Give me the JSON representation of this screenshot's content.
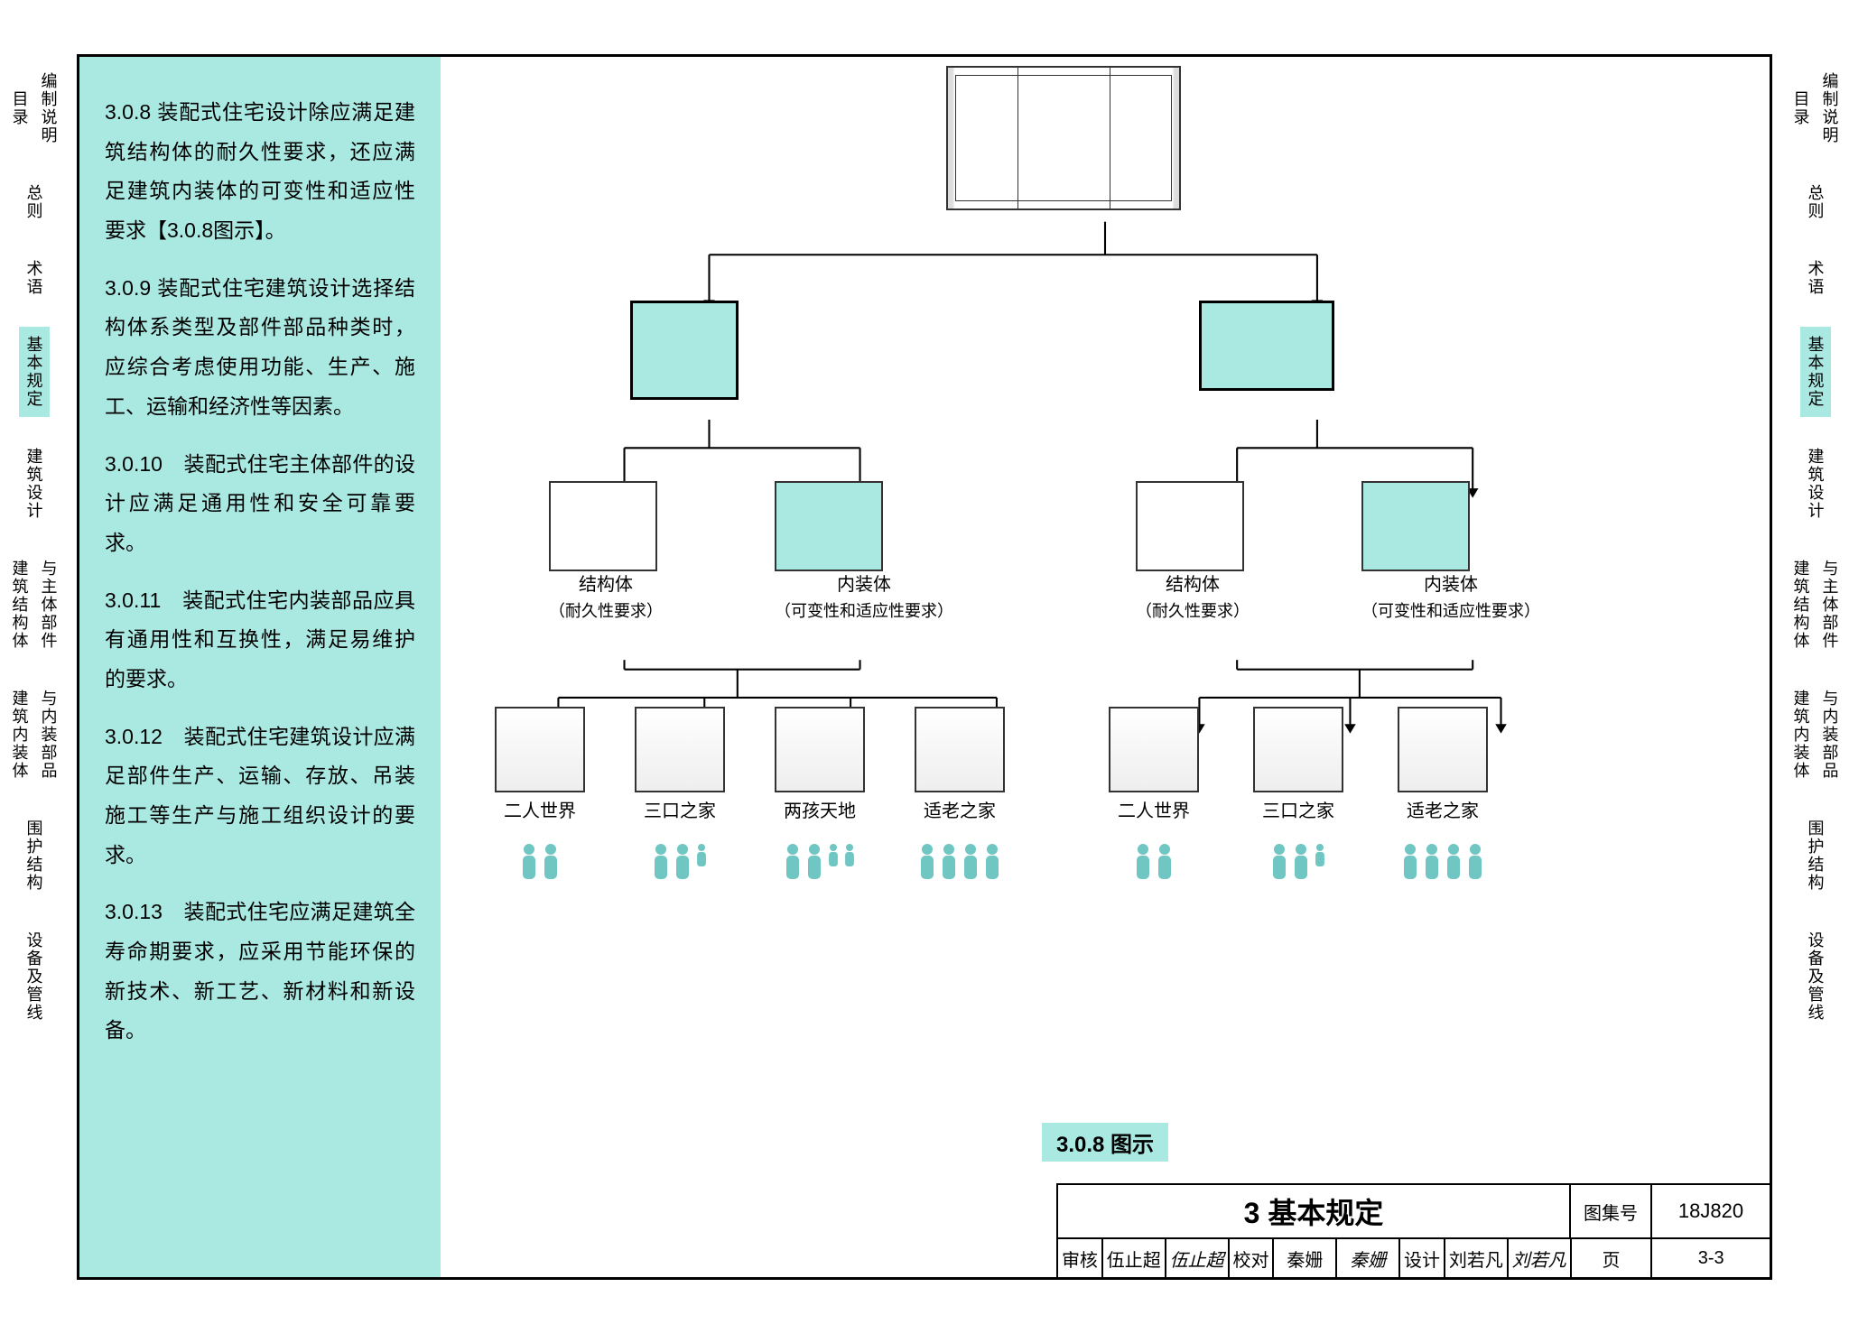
{
  "colors": {
    "accent": "#aae8e2",
    "border": "#000000",
    "text": "#000000",
    "icon": "#6fc6c2"
  },
  "nav": {
    "items": [
      {
        "label": "目录",
        "group": [
          "编制说明"
        ],
        "highlight": false
      },
      {
        "label": "总则",
        "highlight": false
      },
      {
        "label": "术语",
        "highlight": false
      },
      {
        "label": "基本规定",
        "highlight": true
      },
      {
        "label": "建筑设计",
        "highlight": false
      },
      {
        "label": "建筑结构体",
        "group": [
          "与主体部件"
        ],
        "highlight": false
      },
      {
        "label": "建筑内装体",
        "group": [
          "与内装部品"
        ],
        "highlight": false
      },
      {
        "label": "围护结构",
        "highlight": false
      },
      {
        "label": "设备及管线",
        "highlight": false
      }
    ]
  },
  "paragraphs": [
    "3.0.8 装配式住宅设计除应满足建筑结构体的耐久性要求，还应满足建筑内装体的可变性和适应性要求【3.0.8图示】。",
    "3.0.9 装配式住宅建筑设计选择结构体系类型及部件部品种类时，应综合考虑使用功能、生产、施工、运输和经济性等因素。",
    "3.0.10　装配式住宅主体部件的设计应满足通用性和安全可靠要求。",
    "3.0.11　装配式住宅内装部品应具有通用性和互换性，满足易维护的要求。",
    "3.0.12　装配式住宅建筑设计应满足部件生产、运输、存放、吊装施工等生产与施工组织设计的要求。",
    "3.0.13　装配式住宅应满足建筑全寿命期要求，应采用节能环保的新技术、新工艺、新材料和新设备。"
  ],
  "diagram": {
    "figure_label": "3.0.8 图示",
    "mid_labels": {
      "struct_title": "结构体",
      "struct_sub": "（耐久性要求）",
      "interior_title": "内装体",
      "interior_sub": "（可变性和适应性要求）"
    },
    "leaves_left": [
      {
        "label": "二人世界",
        "people": [
          2,
          2
        ]
      },
      {
        "label": "三口之家",
        "people": [
          2,
          2,
          1
        ]
      },
      {
        "label": "两孩天地",
        "people": [
          2,
          2,
          1,
          1
        ]
      },
      {
        "label": "适老之家",
        "people": [
          2,
          2,
          2,
          2
        ]
      }
    ],
    "leaves_right": [
      {
        "label": "二人世界",
        "people": [
          2,
          2
        ]
      },
      {
        "label": "三口之家",
        "people": [
          2,
          2,
          1
        ]
      },
      {
        "label": "适老之家",
        "people": [
          2,
          2,
          2,
          2
        ]
      }
    ]
  },
  "title_block": {
    "chapter": "3 基本规定",
    "atlas_label": "图集号",
    "atlas_no": "18J820",
    "cells": [
      {
        "k": "审核",
        "v": "伍止超",
        "sig": "伍止超"
      },
      {
        "k": "校对",
        "v": "秦姗",
        "sig": "秦姗"
      },
      {
        "k": "设计",
        "v": "刘若凡",
        "sig": "刘若凡"
      }
    ],
    "page_label": "页",
    "page_no": "3-3"
  }
}
